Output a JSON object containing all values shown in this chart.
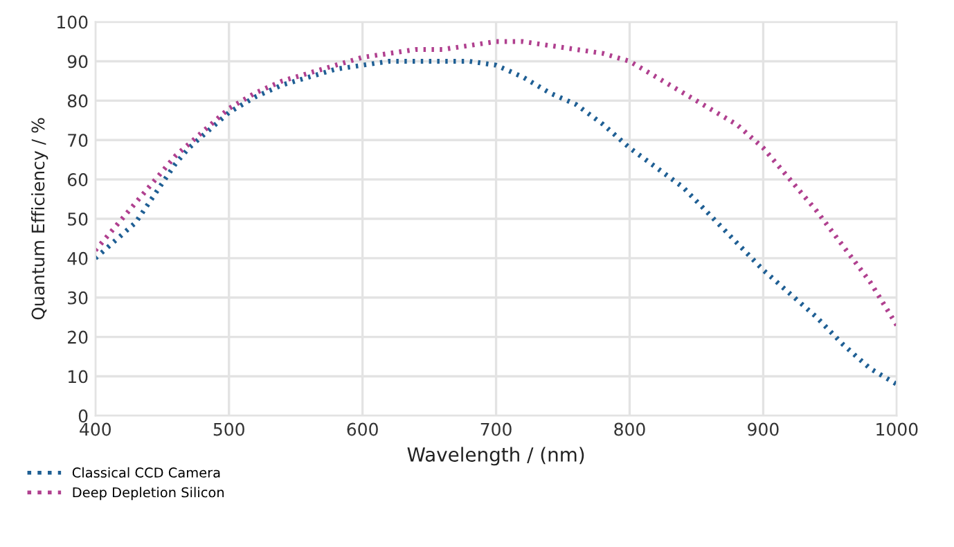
{
  "chart_data": {
    "type": "line",
    "xlabel": "Wavelength / (nm)",
    "ylabel": "Quantum Efficiency / %",
    "xlim": [
      400,
      1000
    ],
    "xticks": [
      400,
      500,
      600,
      700,
      800,
      900,
      1000
    ],
    "ylim": [
      0,
      100
    ],
    "yticks": [
      0,
      10,
      20,
      30,
      40,
      50,
      60,
      70,
      80,
      90,
      100
    ],
    "grid": true,
    "legend": "bottom left",
    "line_style": "dotted",
    "marker": "none",
    "series": [
      {
        "name": "Classical CCD Camera",
        "color": "#1f5f94",
        "x": [
          400,
          410,
          420,
          430,
          440,
          450,
          460,
          470,
          480,
          490,
          500,
          520,
          540,
          560,
          580,
          600,
          620,
          640,
          660,
          680,
          700,
          720,
          740,
          760,
          780,
          800,
          820,
          840,
          860,
          880,
          900,
          920,
          940,
          960,
          980,
          1000
        ],
        "values": [
          40,
          43,
          46,
          49,
          54,
          59,
          64,
          68,
          71,
          74,
          77,
          81,
          84,
          86,
          88,
          89,
          90,
          90,
          90,
          90,
          89,
          86,
          82,
          79,
          74,
          68,
          63,
          58,
          51,
          44,
          37,
          31,
          25,
          18,
          12,
          8
        ]
      },
      {
        "name": "Deep Depletion Silicon",
        "color": "#b0408f",
        "x": [
          400,
          420,
          440,
          460,
          480,
          500,
          520,
          540,
          560,
          580,
          600,
          620,
          640,
          660,
          680,
          700,
          720,
          740,
          760,
          780,
          800,
          820,
          840,
          860,
          880,
          900,
          920,
          940,
          960,
          980,
          1000
        ],
        "values": [
          42,
          50,
          58,
          66,
          72,
          78,
          82,
          85,
          87,
          89,
          91,
          92,
          93,
          93,
          94,
          95,
          95,
          94,
          93,
          92,
          90,
          86,
          82,
          78,
          74,
          68,
          60,
          52,
          43,
          34,
          23
        ]
      }
    ]
  }
}
